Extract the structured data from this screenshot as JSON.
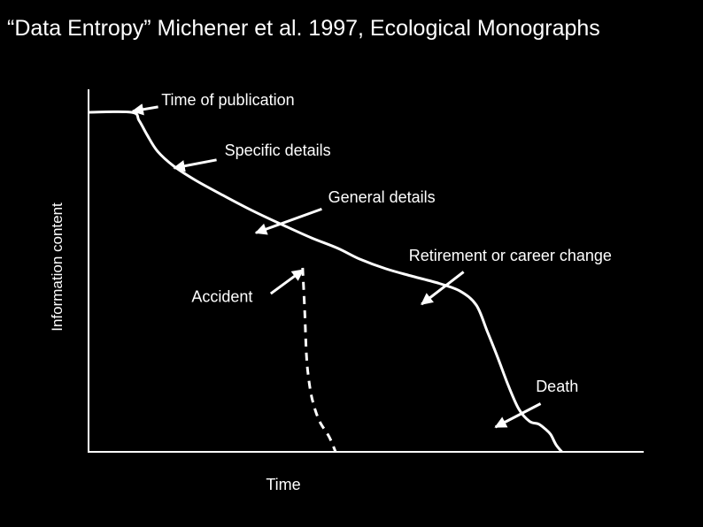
{
  "slide": {
    "title": "“Data Entropy” Michener et al. 1997, Ecological Monographs"
  },
  "chart_data": {
    "type": "line",
    "title": "",
    "xlabel": "Time",
    "ylabel": "Information content",
    "xlim": [
      0,
      100
    ],
    "ylim": [
      0,
      100
    ],
    "grid": false,
    "legend": "none",
    "colors": {
      "background": "#000000",
      "foreground": "#ffffff"
    },
    "series": [
      {
        "style": "solid",
        "x": [
          0,
          8.1,
          9.5,
          11,
          13,
          16,
          20,
          25,
          31,
          37,
          42,
          47,
          51,
          56,
          61,
          66,
          70,
          73,
          75,
          77,
          79,
          81,
          83,
          84.7,
          86,
          87,
          88,
          89.1
        ],
        "y": [
          100,
          100,
          97.6,
          93.4,
          88.5,
          84.2,
          80.1,
          75.8,
          70.9,
          66.5,
          63,
          59.9,
          56.8,
          53.9,
          51.7,
          49.6,
          47.3,
          43.2,
          35.7,
          27.9,
          19.6,
          12.6,
          9,
          8.2,
          6.7,
          5.1,
          2.1,
          0
        ]
      },
      {
        "style": "dashed",
        "x": [
          40.3,
          40.7,
          41,
          41.4,
          42.1,
          43.4,
          45.3,
          46.5
        ],
        "y": [
          54.2,
          41.3,
          29,
          22,
          15.5,
          9.3,
          4.4,
          0
        ]
      }
    ],
    "annotations": [
      {
        "text": "Time of publication",
        "text_anchor": "start",
        "label_x": 13.7,
        "label_y": 102.1,
        "from_x": 13.1,
        "from_y": 101.6,
        "to_x": 8.3,
        "to_y": 100.3
      },
      {
        "text": "Specific details",
        "text_anchor": "start",
        "label_x": 25.6,
        "label_y": 87.2,
        "from_x": 24.1,
        "from_y": 86,
        "to_x": 16.1,
        "to_y": 83.6
      },
      {
        "text": "General details",
        "text_anchor": "start",
        "label_x": 45.1,
        "label_y": 73.5,
        "from_x": 43.9,
        "from_y": 71.5,
        "to_x": 31.5,
        "to_y": 64.5
      },
      {
        "text": "Retirement or career change",
        "text_anchor": "start",
        "label_x": 60.3,
        "label_y": 56.2,
        "from_x": 70.6,
        "from_y": 53,
        "to_x": 62.7,
        "to_y": 43.5
      },
      {
        "text": "Accident",
        "text_anchor": "start",
        "label_x": 19.4,
        "label_y": 44.1,
        "from_x": 34.3,
        "from_y": 46.6,
        "to_x": 40.4,
        "to_y": 53.6
      },
      {
        "text": "Death",
        "text_anchor": "start",
        "label_x": 84.2,
        "label_y": 17.7,
        "from_x": 85.1,
        "from_y": 14.2,
        "to_x": 76.6,
        "to_y": 7.3
      }
    ]
  }
}
